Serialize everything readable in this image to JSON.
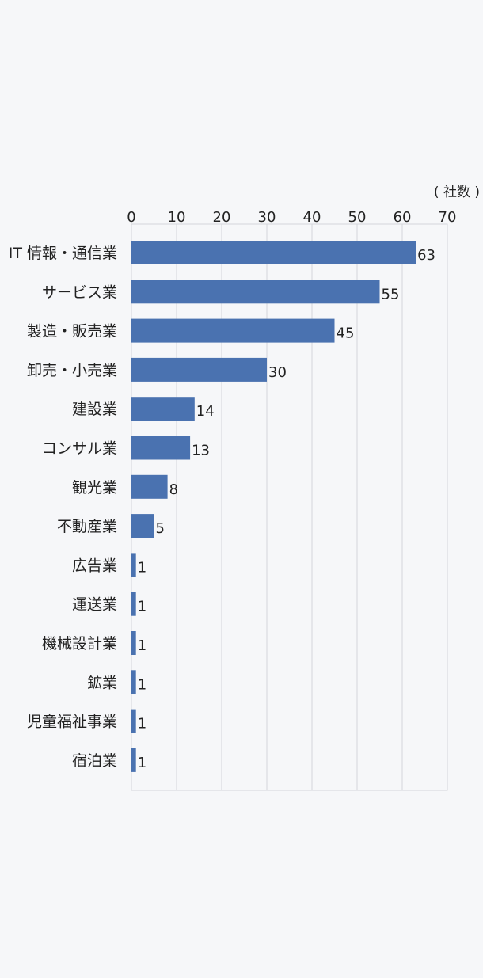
{
  "chart_data": {
    "type": "bar",
    "orientation": "horizontal",
    "unit_label": "( 社数 )",
    "categories": [
      "IT 情報・通信業",
      "サービス業",
      "製造・販売業",
      "卸売・小売業",
      "建設業",
      "コンサル業",
      "観光業",
      "不動産業",
      "広告業",
      "運送業",
      "機械設計業",
      "鉱業",
      "児童福祉事業",
      "宿泊業"
    ],
    "values": [
      63,
      55,
      45,
      30,
      14,
      13,
      8,
      5,
      1,
      1,
      1,
      1,
      1,
      1
    ],
    "value_labels": [
      "63",
      "55",
      "45",
      "30",
      "14",
      "13",
      "8",
      "5",
      "1",
      "1",
      "1",
      "1",
      "1",
      "1"
    ],
    "xlim": [
      0,
      70
    ],
    "xticks": [
      0,
      10,
      20,
      30,
      40,
      50,
      60,
      70
    ],
    "xtick_labels": [
      "0",
      "10",
      "20",
      "30",
      "40",
      "50",
      "60",
      "70"
    ],
    "x_axis_position": "top",
    "grid": true,
    "bar_color": "#4a72b0",
    "grid_color": "#d4d6da",
    "background_color": "#f6f7f9"
  }
}
